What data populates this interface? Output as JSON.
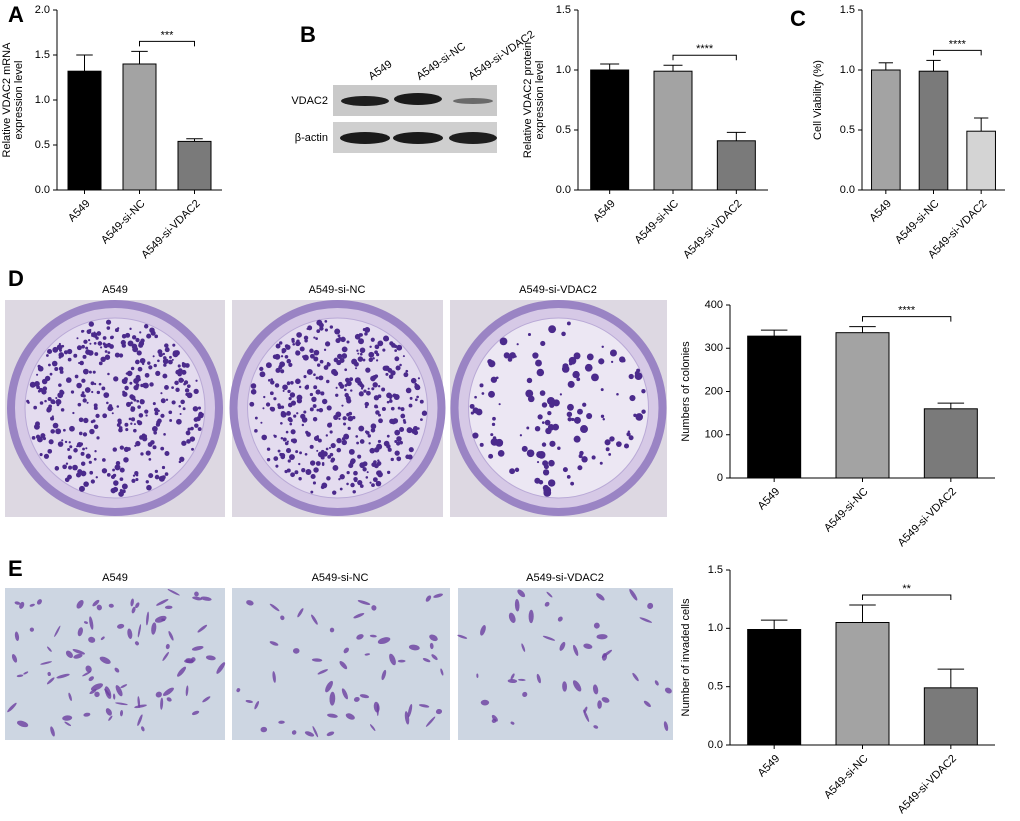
{
  "blot": {
    "panel": "B",
    "lanes": [
      "A549",
      "A549-si-NC",
      "A549-si-VDAC2"
    ],
    "rows": [
      "VDAC2",
      "β-actin"
    ]
  },
  "colony_images": {
    "panel": "D",
    "captions": [
      "A549",
      "A549-si-NC",
      "A549-si-VDAC2"
    ]
  },
  "invasion_images": {
    "panel": "E",
    "captions": [
      "A549",
      "A549-si-NC",
      "A549-si-VDAC2"
    ]
  },
  "chart_data": [
    {
      "type": "bar",
      "panel": "A",
      "ylabel": [
        "Relative VDAC2 mRNA",
        "expression level"
      ],
      "categories": [
        "A549",
        "A549-si-NC",
        "A549-si-VDAC2"
      ],
      "values": [
        1.32,
        1.4,
        0.54
      ],
      "errors": [
        0.18,
        0.14,
        0.03
      ],
      "colors": [
        "#000000",
        "#a3a3a3",
        "#7a7a7a"
      ],
      "ylim": [
        0,
        2
      ],
      "yticks": [
        {
          "value": 0,
          "label": "0.0"
        },
        0.5,
        {
          "value": 1,
          "label": "1.0"
        },
        1.5,
        {
          "value": 2,
          "label": "2.0"
        }
      ],
      "significance": "***"
    },
    {
      "type": "bar",
      "ylabel": [
        "Relative VDAC2 protein",
        "expression level"
      ],
      "categories": [
        "A549",
        "A549-si-NC",
        "A549-si-VDAC2"
      ],
      "values": [
        1.0,
        0.99,
        0.41
      ],
      "errors": [
        0.05,
        0.05,
        0.07
      ],
      "colors": [
        "#000000",
        "#a3a3a3",
        "#7a7a7a"
      ],
      "ylim": [
        0,
        1.5
      ],
      "yticks": [
        {
          "value": 0,
          "label": "0.0"
        },
        0.5,
        {
          "value": 1,
          "label": "1.0"
        },
        1.5
      ],
      "significance": "****"
    },
    {
      "type": "bar",
      "panel": "C",
      "ylabel": [
        "Cell Viability (%)"
      ],
      "categories": [
        "A549",
        "A549-si-NC",
        "A549-si-VDAC2"
      ],
      "values": [
        1.0,
        0.99,
        0.49
      ],
      "errors": [
        0.06,
        0.09,
        0.11
      ],
      "colors": [
        "#a3a3a3",
        "#7a7a7a",
        "#d4d4d4"
      ],
      "ylim": [
        0,
        1.5
      ],
      "yticks": [
        {
          "value": 0,
          "label": "0.0"
        },
        0.5,
        {
          "value": 1,
          "label": "1.0"
        },
        1.5
      ],
      "significance": "****"
    },
    {
      "type": "bar",
      "ylabel": [
        "Numbers of colonies"
      ],
      "categories": [
        "A549",
        "A549-si-NC",
        "A549-si-VDAC2"
      ],
      "values": [
        328,
        336,
        160
      ],
      "errors": [
        14,
        14,
        13
      ],
      "colors": [
        "#000000",
        "#a3a3a3",
        "#7a7a7a"
      ],
      "ylim": [
        0,
        400
      ],
      "yticks": [
        0,
        100,
        200,
        300,
        400
      ],
      "significance": "****"
    },
    {
      "type": "bar",
      "ylabel": [
        "Number of invaded cells"
      ],
      "categories": [
        "A549",
        "A549-si-NC",
        "A549-si-VDAC2"
      ],
      "values": [
        0.99,
        1.05,
        0.49
      ],
      "errors": [
        0.08,
        0.15,
        0.16
      ],
      "colors": [
        "#000000",
        "#a3a3a3",
        "#7a7a7a"
      ],
      "ylim": [
        0,
        1.5
      ],
      "yticks": [
        {
          "value": 0,
          "label": "0.0"
        },
        0.5,
        {
          "value": 1,
          "label": "1.0"
        },
        1.5
      ],
      "significance": "**"
    }
  ]
}
